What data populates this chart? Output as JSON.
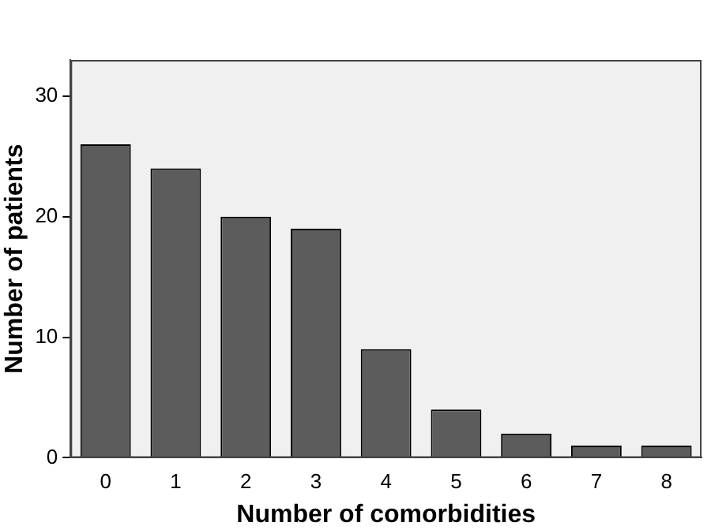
{
  "chart_data": {
    "type": "bar",
    "xlabel": "Number of comorbidities",
    "ylabel": "Number of patients",
    "categories": [
      "0",
      "1",
      "2",
      "3",
      "4",
      "5",
      "6",
      "7",
      "8"
    ],
    "values": [
      26,
      24,
      20,
      19,
      9,
      4,
      2,
      1,
      1
    ],
    "color": "#5c5c5c",
    "ylim": [
      0,
      33
    ],
    "yticks": [
      0,
      10,
      20,
      30
    ],
    "grid": false,
    "legend": false
  }
}
